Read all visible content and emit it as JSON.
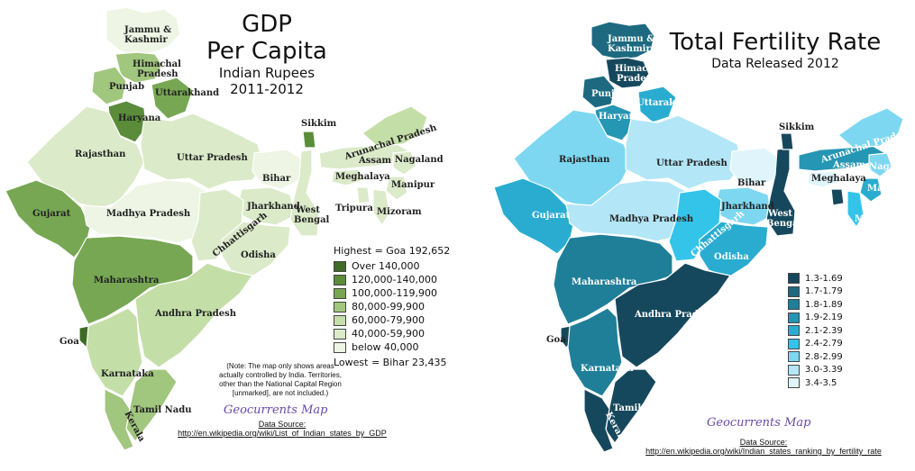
{
  "gdp": {
    "title": "GDP",
    "title2": "Per Capita",
    "subtitle": "Indian Rupees",
    "years": "2011-2012",
    "highest": "Highest = Goa 192,652",
    "lowest": "Lowest = Bihar 23,435",
    "legend": [
      {
        "label": "Over 140,000",
        "color": "#3f6b27"
      },
      {
        "label": "120,000-140,000",
        "color": "#5a8c3a"
      },
      {
        "label": "100,000-119,900",
        "color": "#77a753"
      },
      {
        "label": "80,000-99,900",
        "color": "#a1c67e"
      },
      {
        "label": "60,000-79,900",
        "color": "#c4dea8"
      },
      {
        "label": "40,000-59,900",
        "color": "#dbeac9"
      },
      {
        "label": "below 40,000",
        "color": "#eef5e4"
      }
    ],
    "note": [
      "(Note: The map only shows areas",
      "actually controlled by India. Territories,",
      "other than the National Capital Region",
      "[unmarked], are not included.)"
    ],
    "credit": "Geocurrents Map",
    "source_label": "Data Source:",
    "source_url": "http://en.wikipedia.org/wiki/List_of_Indian_states_by_GDP",
    "states": {
      "jk": "Jammu &",
      "jk2": "Kashmir",
      "hp": "Himachal",
      "hp2": "Pradesh",
      "punjab": "Punjab",
      "uttarakhand": "Uttarakhand",
      "haryana": "Haryana",
      "rajasthan": "Rajasthan",
      "up": "Uttar Pradesh",
      "sikkim": "Sikkim",
      "arunachal": "Arunachal Pradesh",
      "assam": "Assam",
      "nagaland": "Nagaland",
      "meghalaya": "Meghalaya",
      "manipur": "Manipur",
      "tripura": "Tripura",
      "mizoram": "Mizoram",
      "bihar": "Bihar",
      "jharkhand": "Jharkhand",
      "wb": "West",
      "wb2": "Bengal",
      "gujarat": "Gujarat",
      "mp": "Madhya Pradesh",
      "chhattisgarh": "Chhattisgarh",
      "odisha": "Odisha",
      "maharashtra": "Maharashtra",
      "ap": "Andhra Pradesh",
      "goa": "Goa",
      "karnataka": "Karnataka",
      "tn": "Tamil Nadu",
      "kerala": "Kerala"
    }
  },
  "tfr": {
    "title": "Total Fertility Rate",
    "subtitle": "Data Released 2012",
    "legend": [
      {
        "label": "1.3-1.69",
        "color": "#16485d"
      },
      {
        "label": "1.7-1.79",
        "color": "#1d6a80"
      },
      {
        "label": "1.8-1.89",
        "color": "#1f7f98"
      },
      {
        "label": "1.9-2.19",
        "color": "#2596b3"
      },
      {
        "label": "2.1-2.39",
        "color": "#29acd0"
      },
      {
        "label": "2.4-2.79",
        "color": "#34c4ea"
      },
      {
        "label": "2.8-2.99",
        "color": "#7dd7f1"
      },
      {
        "label": "3.0-3.39",
        "color": "#b3e6f6"
      },
      {
        "label": "3.4-3.5",
        "color": "#dff4fb"
      }
    ],
    "credit": "Geocurrents Map",
    "source_label": "Data Source:",
    "source_url": "http://en.wikipedia.org/wiki/Indian_states_ranking_by_fertility_rate"
  }
}
